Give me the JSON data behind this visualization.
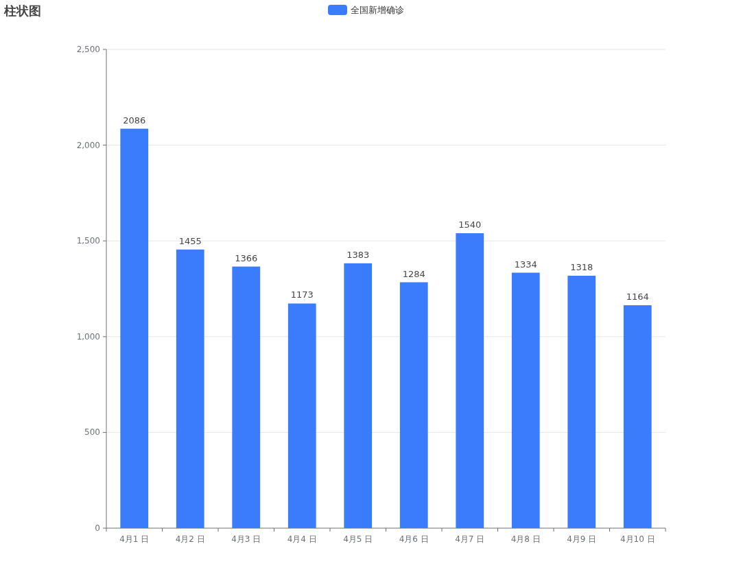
{
  "chart_data": {
    "type": "bar",
    "title": "柱状图",
    "categories": [
      "4月1 日",
      "4月2 日",
      "4月3 日",
      "4月4 日",
      "4月5 日",
      "4月6 日",
      "4月7 日",
      "4月8 日",
      "4月9 日",
      "4月10 日"
    ],
    "series": [
      {
        "name": "全国新增确诊",
        "color": "#3a7cfb",
        "values": [
          2086,
          1455,
          1366,
          1173,
          1383,
          1284,
          1540,
          1334,
          1318,
          1164
        ]
      }
    ],
    "ylim": [
      0,
      2500
    ],
    "yticks": [
      0,
      {
        "value": 500,
        "label": "500"
      },
      {
        "value": 1000,
        "label": "1,000"
      },
      {
        "value": 1500,
        "label": "1,500"
      },
      {
        "value": 2000,
        "label": "2,000"
      },
      {
        "value": 2500,
        "label": "2,500"
      }
    ],
    "grid": "y",
    "legend": "top",
    "data_labels": true
  }
}
